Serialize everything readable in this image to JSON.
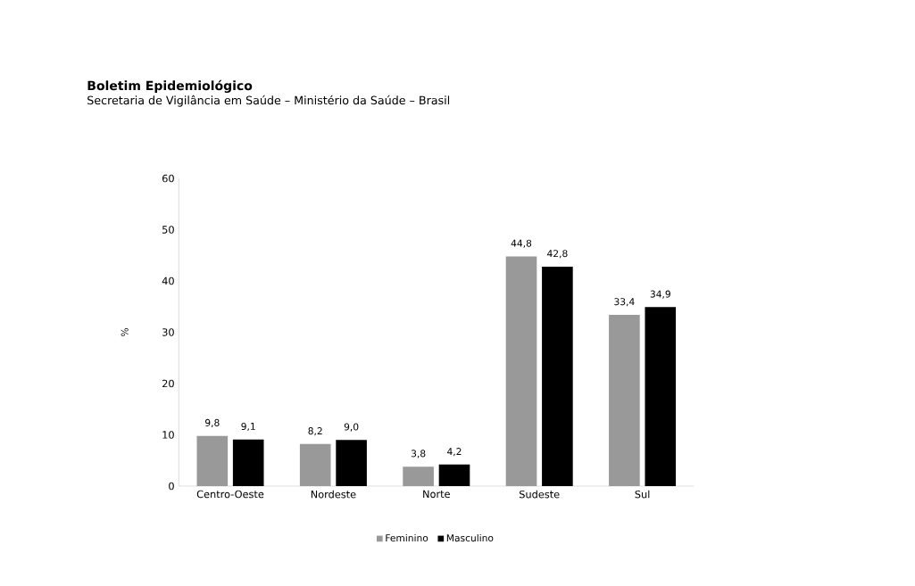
{
  "chart_data": {
    "type": "bar",
    "title": "Boletim Epidemiológico",
    "subtitle": "Secretaria de Vigilância em Saúde – Ministério da Saúde – Brasil",
    "ylabel": "%",
    "categories": [
      "Centro-Oeste",
      "Nordeste",
      "Norte",
      "Sudeste",
      "Sul"
    ],
    "series": [
      {
        "name": "Feminino",
        "color": "#999999",
        "values": [
          9.8,
          8.2,
          3.8,
          44.8,
          33.4
        ],
        "value_labels": [
          "9,8",
          "8,2",
          "3,8",
          "44,8",
          "33,4"
        ]
      },
      {
        "name": "Masculino",
        "color": "#000000",
        "values": [
          9.1,
          9.0,
          4.2,
          42.8,
          34.9
        ],
        "value_labels": [
          "9,1",
          "9,0",
          "4,2",
          "42,8",
          "34,9"
        ]
      }
    ],
    "ylim": [
      0,
      60
    ],
    "yticks": [
      0,
      10,
      20,
      30,
      40,
      50,
      60
    ],
    "grid": false,
    "legend": "bottom"
  }
}
